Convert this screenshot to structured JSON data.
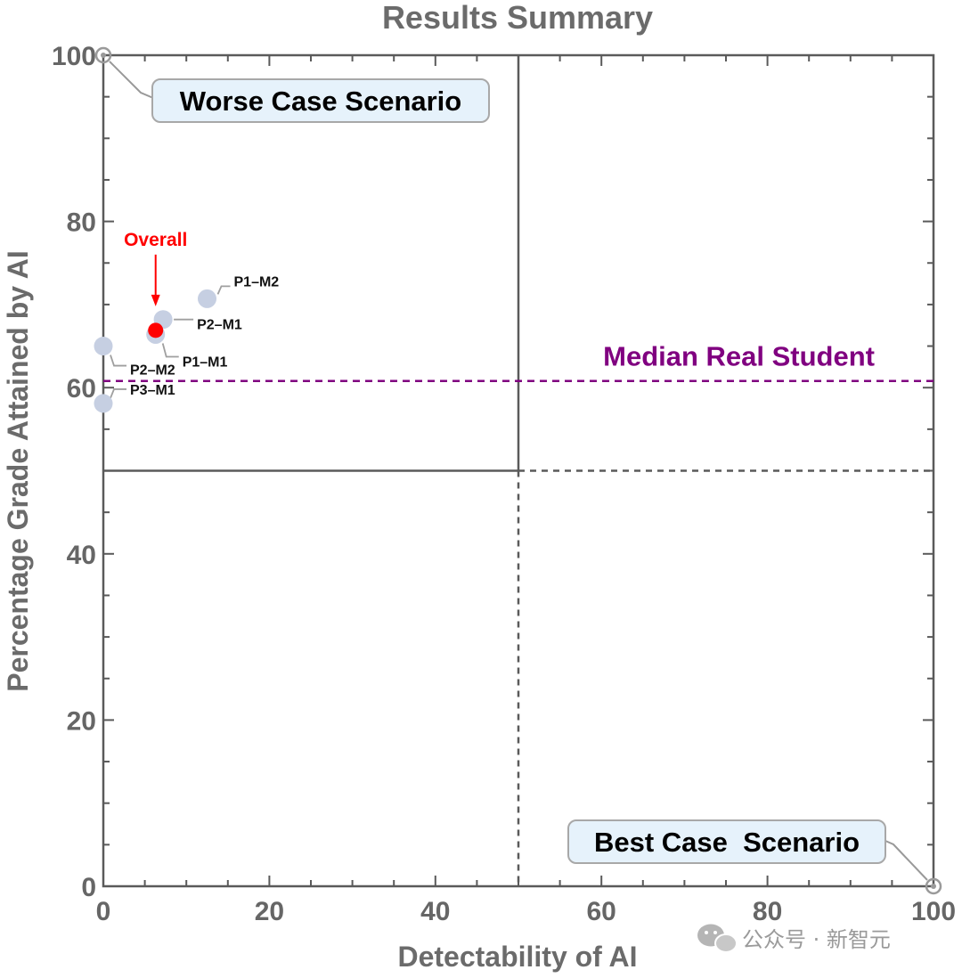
{
  "chart_data": {
    "type": "scatter",
    "title": "Results Summary",
    "xlabel": "Detectability of AI",
    "ylabel": "Percentage Grade Attained by AI",
    "xlim": [
      0,
      100
    ],
    "ylim": [
      0,
      100
    ],
    "x_ticks": [
      0,
      20,
      40,
      60,
      80,
      100
    ],
    "y_ticks": [
      0,
      20,
      40,
      60,
      80,
      100
    ],
    "x_tick_labels": [
      "0",
      "20",
      "40",
      "60",
      "80",
      "100"
    ],
    "y_tick_labels": [
      "0",
      "20",
      "40",
      "60",
      "80",
      "100"
    ],
    "grid": false,
    "points": [
      {
        "name": "P1–M2",
        "x": 12.5,
        "y": 70.7
      },
      {
        "name": "P2–M1",
        "x": 7.2,
        "y": 68.2
      },
      {
        "name": "P1–M1",
        "x": 6.3,
        "y": 66.4
      },
      {
        "name": "P2–M2",
        "x": 0,
        "y": 65.0
      },
      {
        "name": "P3–M1",
        "x": 0,
        "y": 58.1
      }
    ],
    "overall": {
      "label": "Overall",
      "x": 6.3,
      "y": 66.9
    },
    "median_line": {
      "label": "Median Real Student",
      "y": 60.8
    },
    "quadrant_lines": {
      "x": 50,
      "y": 50
    },
    "callouts": [
      {
        "label": "Worse Case Scenario",
        "x": 0,
        "y": 100
      },
      {
        "label": "Best Case  Scenario",
        "x": 100,
        "y": 0
      }
    ],
    "colors": {
      "point": "#c6cfe2",
      "overall": "#ff0000",
      "median": "#800080",
      "callout_fill": "#e6f2fb",
      "frame": "#5a5a5a"
    }
  },
  "watermark": {
    "text": "公众号 · 新智元",
    "icon": "wechat-icon"
  }
}
